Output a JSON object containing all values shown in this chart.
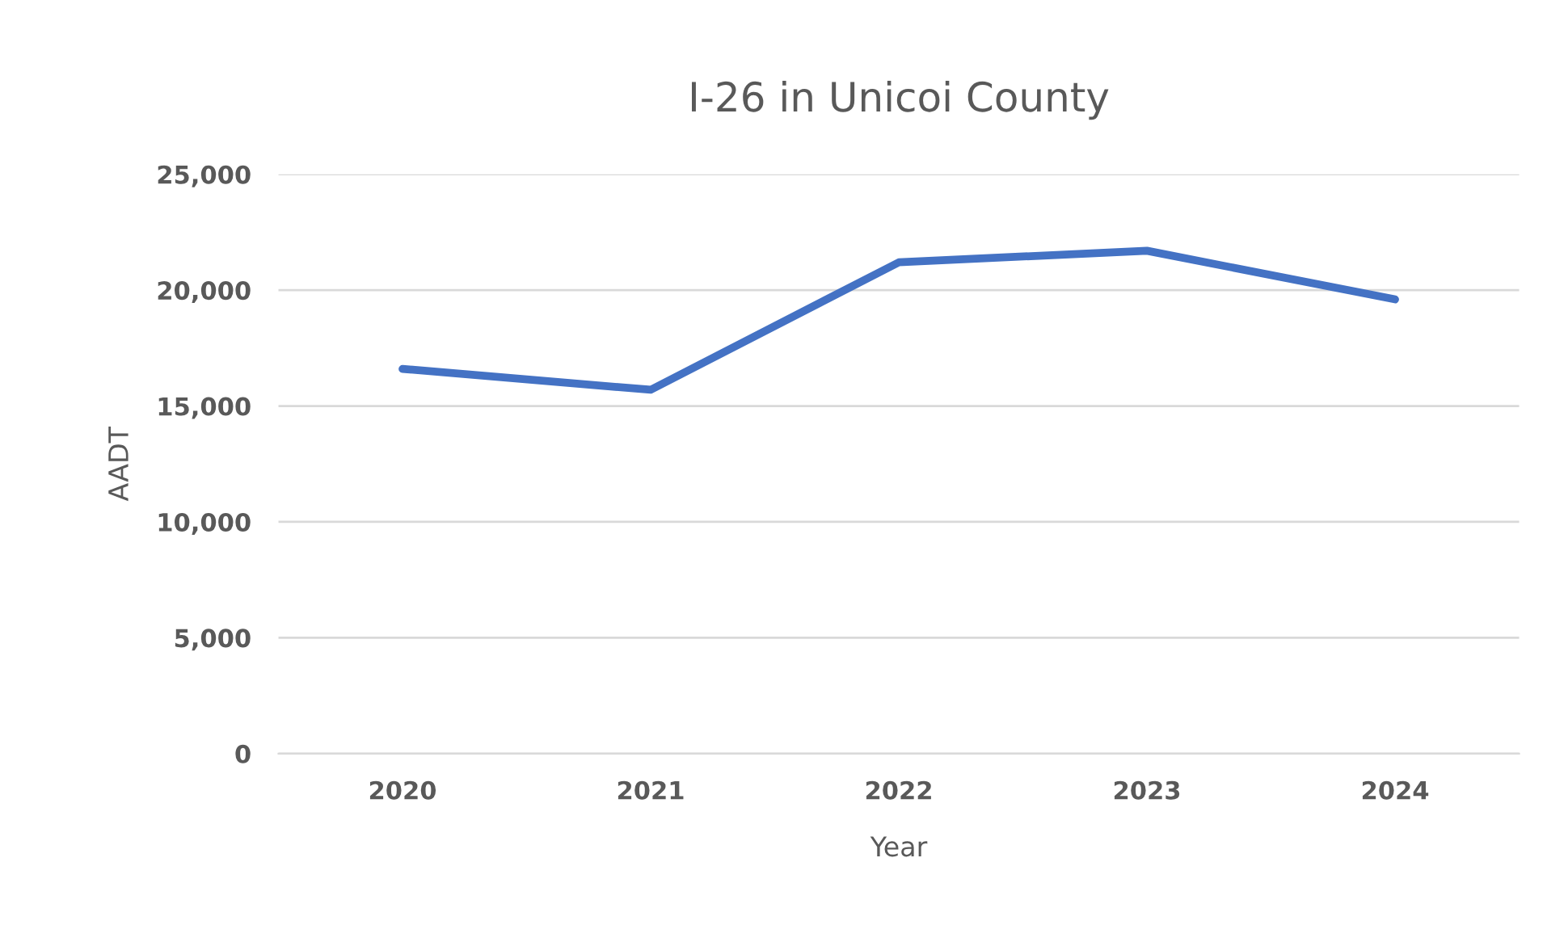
{
  "chart_data": {
    "type": "line",
    "title": "I-26 in Unicoi County",
    "xlabel": "Year",
    "ylabel": "AADT",
    "categories": [
      "2020",
      "2021",
      "2022",
      "2023",
      "2024"
    ],
    "series": [
      {
        "color": "#4472c4",
        "values": [
          16600,
          15700,
          21200,
          21700,
          19600
        ]
      }
    ],
    "ylim": [
      0,
      25000
    ],
    "yticks": [
      {
        "value": 0,
        "label": "0"
      },
      {
        "value": 5000,
        "label": "5,000"
      },
      {
        "value": 10000,
        "label": "10,000"
      },
      {
        "value": 15000,
        "label": "15,000"
      },
      {
        "value": 20000,
        "label": "20,000"
      },
      {
        "value": 25000,
        "label": "25,000"
      }
    ],
    "grid": "y",
    "marker": "none",
    "line_style": "solid"
  }
}
